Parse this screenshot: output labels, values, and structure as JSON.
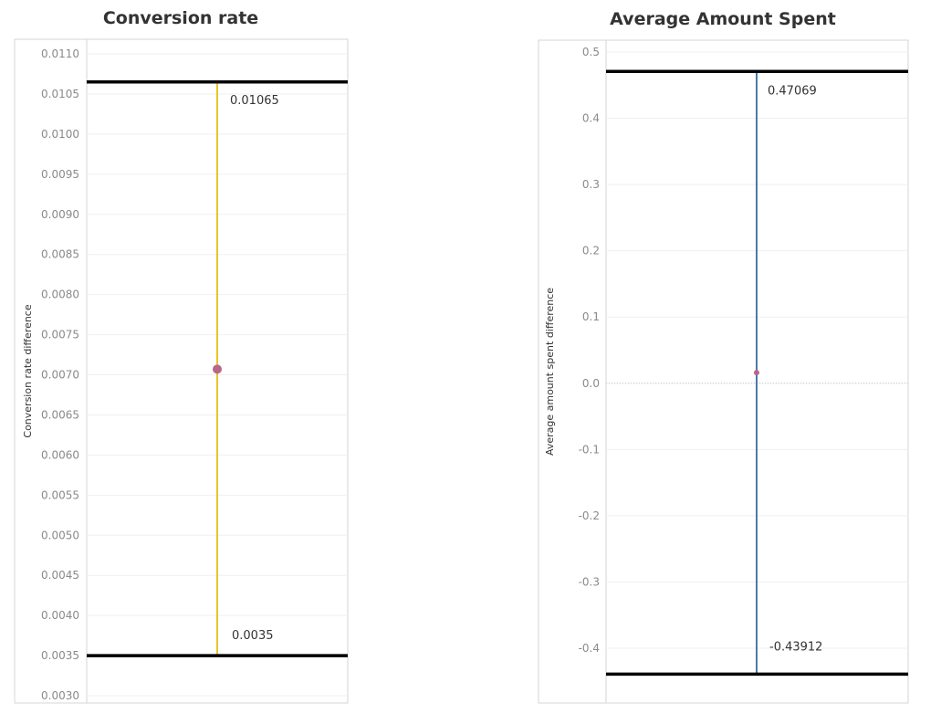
{
  "chart_data": [
    {
      "type": "errorbar",
      "title": "Conversion rate",
      "ylabel": "Conversion rate difference",
      "ylim": [
        0.003,
        0.011
      ],
      "yticks": [
        "0.0030",
        "0.0035",
        "0.0040",
        "0.0045",
        "0.0050",
        "0.0055",
        "0.0060",
        "0.0065",
        "0.0070",
        "0.0075",
        "0.0080",
        "0.0085",
        "0.0090",
        "0.0095",
        "0.0100",
        "0.0105",
        "0.0110"
      ],
      "point": 0.00707,
      "upper": 0.01065,
      "lower": 0.0035,
      "upper_label": "0.01065",
      "lower_label": "0.0035",
      "line_color": "#e8c42a",
      "point_color": "#b8668a",
      "bound_color": "#000000",
      "grid": true
    },
    {
      "type": "errorbar",
      "title": "Average Amount Spent",
      "ylabel": "Average amount spent difference",
      "ylim": [
        -0.44,
        0.5
      ],
      "yticks": [
        "-0.4",
        "-0.3",
        "-0.2",
        "-0.1",
        "0.0",
        "0.1",
        "0.2",
        "0.3",
        "0.4",
        "0.5"
      ],
      "point": 0.016,
      "upper": 0.47069,
      "lower": -0.43912,
      "upper_label": "0.47069",
      "lower_label": "-0.43912",
      "line_color": "#4e79a7",
      "point_color": "#b8668a",
      "bound_color": "#000000",
      "grid": true,
      "zero_line": true
    }
  ]
}
